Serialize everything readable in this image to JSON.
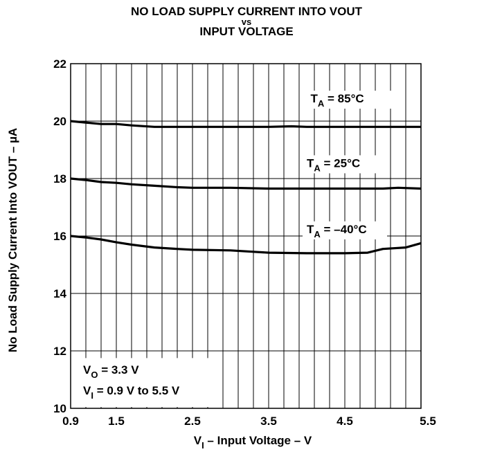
{
  "chart_data": {
    "type": "line",
    "title_lines": [
      "NO LOAD SUPPLY CURRENT INTO VOUT",
      "vs",
      "INPUT VOLTAGE"
    ],
    "xlabel": {
      "main": "V",
      "sub": "I",
      "rest": " – Input Voltage – V"
    },
    "ylabel": "No Load Supply Current Into VOUT – µA",
    "xlim": [
      0.9,
      5.5
    ],
    "ylim": [
      10,
      22
    ],
    "x_ticks": [
      {
        "value": 0.9,
        "label": "0.9"
      },
      {
        "value": 1.5,
        "label": "1.5"
      },
      {
        "value": 2.5,
        "label": "2.5"
      },
      {
        "value": 3.5,
        "label": "3.5"
      },
      {
        "value": 4.5,
        "label": "4.5"
      },
      {
        "value": 5.5,
        "label": "5.5"
      }
    ],
    "y_ticks": [
      {
        "value": 10,
        "label": "10"
      },
      {
        "value": 12,
        "label": "12"
      },
      {
        "value": 14,
        "label": "14"
      },
      {
        "value": 16,
        "label": "16"
      },
      {
        "value": 18,
        "label": "18"
      },
      {
        "value": 20,
        "label": "20"
      },
      {
        "value": 22,
        "label": "22"
      }
    ],
    "grid": true,
    "series": [
      {
        "name": "TA = 85°C",
        "label": {
          "main": "T",
          "sub": "A",
          "rest": " = 85°C"
        },
        "x": [
          0.9,
          1.1,
          1.3,
          1.5,
          1.7,
          2.0,
          2.5,
          3.0,
          3.3,
          3.5,
          3.8,
          4.0,
          4.5,
          5.0,
          5.5
        ],
        "y": [
          20.0,
          19.95,
          19.9,
          19.9,
          19.85,
          19.8,
          19.8,
          19.8,
          19.8,
          19.8,
          19.82,
          19.8,
          19.8,
          19.8,
          19.8
        ]
      },
      {
        "name": "TA = 25°C",
        "label": {
          "main": "T",
          "sub": "A",
          "rest": " = 25°C"
        },
        "x": [
          0.9,
          1.1,
          1.3,
          1.5,
          1.7,
          2.0,
          2.3,
          2.5,
          3.0,
          3.5,
          4.0,
          4.5,
          5.0,
          5.2,
          5.5
        ],
        "y": [
          18.0,
          17.95,
          17.88,
          17.85,
          17.8,
          17.75,
          17.7,
          17.68,
          17.68,
          17.65,
          17.65,
          17.65,
          17.65,
          17.68,
          17.65
        ]
      },
      {
        "name": "TA = –40°C",
        "label": {
          "main": "T",
          "sub": "A",
          "rest": " = –40°C"
        },
        "x": [
          0.9,
          1.1,
          1.3,
          1.5,
          1.7,
          2.0,
          2.3,
          2.5,
          3.0,
          3.3,
          3.5,
          4.0,
          4.5,
          4.8,
          5.0,
          5.3,
          5.5
        ],
        "y": [
          16.0,
          15.95,
          15.88,
          15.78,
          15.7,
          15.6,
          15.55,
          15.52,
          15.5,
          15.45,
          15.42,
          15.4,
          15.4,
          15.42,
          15.55,
          15.6,
          15.75
        ]
      }
    ],
    "annotations": [
      {
        "lines": [
          {
            "main": "V",
            "sub": "O",
            "rest": " = 3.3 V"
          },
          {
            "main": "V",
            "sub": "I",
            "rest": " = 0.9 V to 5.5 V"
          }
        ]
      }
    ],
    "colors": {
      "line": "#000000",
      "grid": "#000000",
      "background": "#ffffff"
    }
  }
}
